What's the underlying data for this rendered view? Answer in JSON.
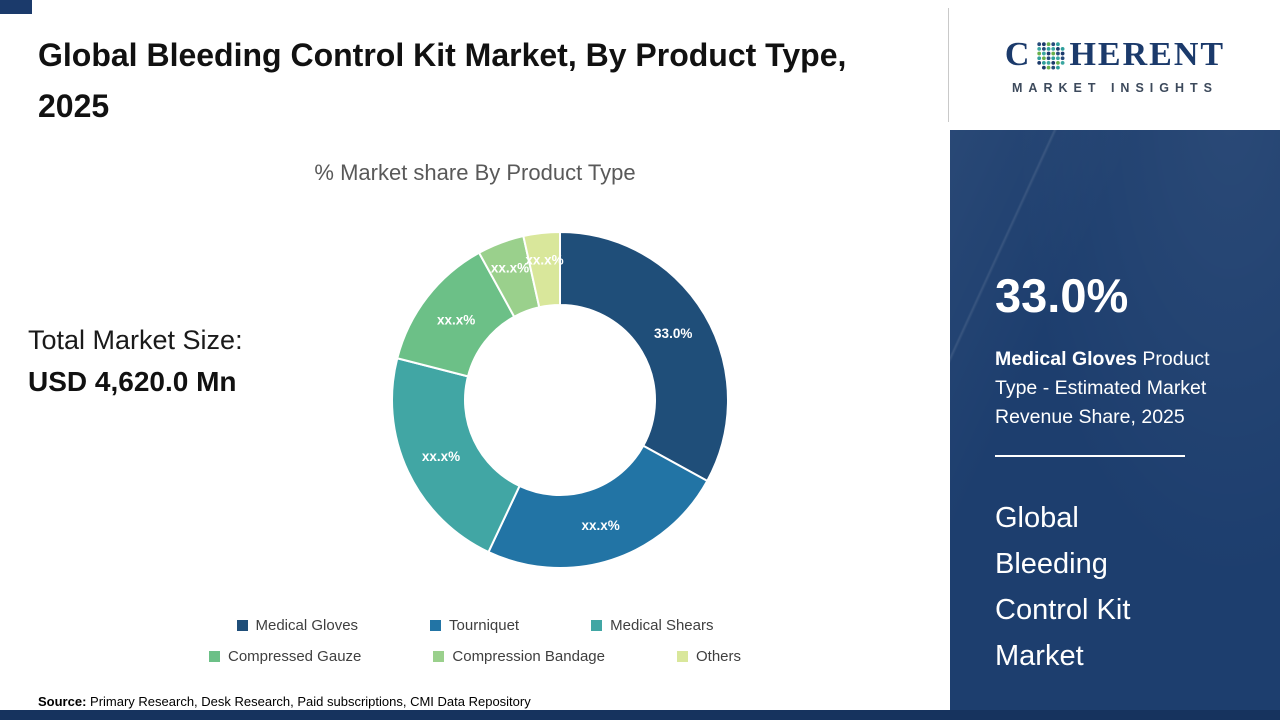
{
  "header": {
    "title": "Global Bleeding Control Kit Market, By Product Type, 2025"
  },
  "logo": {
    "word_start": "C",
    "word_end": "HERENT",
    "tagline": "MARKET INSIGHTS",
    "navy": "#1b3a6b",
    "dot_colors": [
      "#1b3a6b",
      "#2e9e9b",
      "#6ab04c",
      "#3aa6a0",
      "#274b7a"
    ]
  },
  "left_panel": {
    "total_label": "Total Market Size:",
    "total_value": "USD 4,620.0 Mn"
  },
  "chart_data": {
    "type": "pie",
    "donut": true,
    "title": "% Market share By Product Type",
    "legend_position": "bottom",
    "start_angle_deg": -90,
    "direction": "clockwise",
    "segments": [
      {
        "label": "Medical Gloves",
        "value": 33.0,
        "display": "33.0%",
        "color": "#1f4e79"
      },
      {
        "label": "Tourniquet",
        "value": 24.0,
        "display": "xx.x%",
        "color": "#2274a5"
      },
      {
        "label": "Medical Shears",
        "value": 22.0,
        "display": "xx.x%",
        "color": "#41a6a4"
      },
      {
        "label": "Compressed Gauze",
        "value": 13.0,
        "display": "xx.x%",
        "color": "#6cc087"
      },
      {
        "label": "Compression Bandage",
        "value": 4.5,
        "display": "xx.x%",
        "color": "#9ad08c"
      },
      {
        "label": "Others",
        "value": 3.5,
        "display": "xx.x%",
        "color": "#d9e79b"
      }
    ]
  },
  "sidebar": {
    "stat_value": "33.0%",
    "stat_bold": "Medical Gloves",
    "stat_rest": " Product Type - Estimated Market Revenue Share, 2025",
    "market_name_lines": [
      "Global",
      "Bleeding",
      "Control Kit",
      "Market"
    ]
  },
  "footer": {
    "source_label": "Source:",
    "source_text": " Primary Research, Desk Research, Paid subscriptions, CMI Data Repository"
  }
}
